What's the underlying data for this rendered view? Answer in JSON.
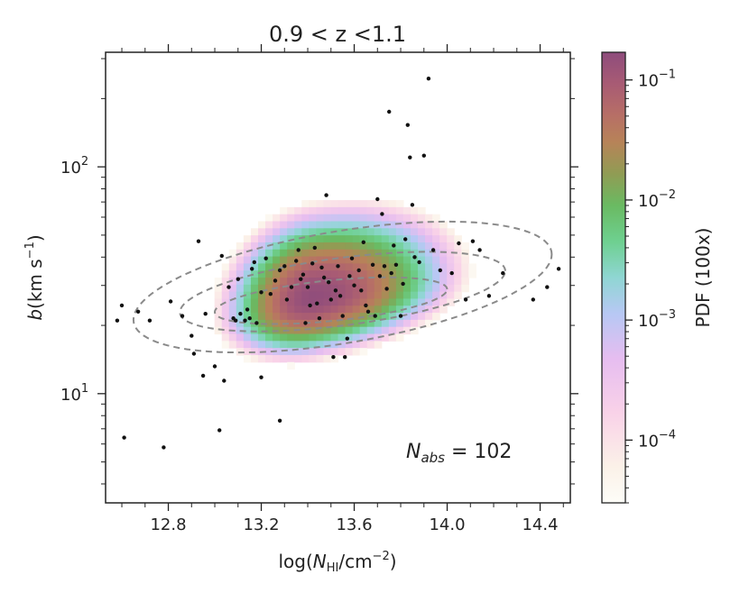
{
  "chart_data": {
    "type": "scatter",
    "title": "0.9 < z <1.1",
    "xlabel": "log(N_HI/cm^-2)",
    "ylabel": "b(km s^-1)",
    "xlim": [
      12.53,
      14.53
    ],
    "ylim": [
      3.3,
      320
    ],
    "yscale": "log",
    "xticks": [
      12.8,
      13.2,
      13.6,
      14.0,
      14.4
    ],
    "xtick_labels": [
      "12.8",
      "13.2",
      "13.6",
      "14.0",
      "14.4"
    ],
    "yticks": [
      10,
      100
    ],
    "ytick_labels": [
      "10^1",
      "10^2"
    ],
    "annotation": "N_abs = 102",
    "colorbar": {
      "label": "PDF (100x)",
      "scale": "log",
      "range": [
        3e-05,
        0.17
      ],
      "ticks": [
        0.0001,
        0.001,
        0.01,
        0.1
      ],
      "tick_labels": [
        "10^-4",
        "10^-3",
        "10^-2",
        "10^-1"
      ]
    },
    "density_model": {
      "note": "smooth log-normal PDF background with dashed contour levels",
      "center_x": 13.42,
      "center_log10_b": 1.42,
      "contours": [
        {
          "name": "outer",
          "cx": 13.55,
          "cy": 1.47,
          "rx": 0.9,
          "ry": 0.25,
          "tilt": 0.16
        },
        {
          "name": "mid",
          "cx": 13.55,
          "cy": 1.45,
          "rx": 0.7,
          "ry": 0.15,
          "tilt": 0.13
        },
        {
          "name": "inner",
          "cx": 13.5,
          "cy": 1.41,
          "rx": 0.5,
          "ry": 0.09,
          "tilt": 0.1
        }
      ]
    },
    "points": [
      [
        12.58,
        21.0
      ],
      [
        12.6,
        24.5
      ],
      [
        12.61,
        6.4
      ],
      [
        12.67,
        23.0
      ],
      [
        12.72,
        21.0
      ],
      [
        12.78,
        5.8
      ],
      [
        12.81,
        25.5
      ],
      [
        12.86,
        22.0
      ],
      [
        12.9,
        18.0
      ],
      [
        12.91,
        15.0
      ],
      [
        12.93,
        47.0
      ],
      [
        12.95,
        12.0
      ],
      [
        12.96,
        22.5
      ],
      [
        13.0,
        13.2
      ],
      [
        13.02,
        6.9
      ],
      [
        13.03,
        40.5
      ],
      [
        13.04,
        11.4
      ],
      [
        13.06,
        29.5
      ],
      [
        13.08,
        21.5
      ],
      [
        13.09,
        21.0
      ],
      [
        13.1,
        32.0
      ],
      [
        13.11,
        22.5
      ],
      [
        13.13,
        21.0
      ],
      [
        13.14,
        23.5
      ],
      [
        13.15,
        21.5
      ],
      [
        13.16,
        35.5
      ],
      [
        13.17,
        38.0
      ],
      [
        13.18,
        20.5
      ],
      [
        13.2,
        11.8
      ],
      [
        13.2,
        28.0
      ],
      [
        13.22,
        39.5
      ],
      [
        13.24,
        27.5
      ],
      [
        13.26,
        31.5
      ],
      [
        13.28,
        7.6
      ],
      [
        13.28,
        35.0
      ],
      [
        13.3,
        36.5
      ],
      [
        13.31,
        26.0
      ],
      [
        13.33,
        29.5
      ],
      [
        13.35,
        38.5
      ],
      [
        13.36,
        43.0
      ],
      [
        13.37,
        32.0
      ],
      [
        13.38,
        33.5
      ],
      [
        13.39,
        20.5
      ],
      [
        13.4,
        29.5
      ],
      [
        13.41,
        24.5
      ],
      [
        13.42,
        37.5
      ],
      [
        13.43,
        44.0
      ],
      [
        13.44,
        25.0
      ],
      [
        13.45,
        21.5
      ],
      [
        13.46,
        36.0
      ],
      [
        13.47,
        32.5
      ],
      [
        13.48,
        75.0
      ],
      [
        13.49,
        31.0
      ],
      [
        13.5,
        26.0
      ],
      [
        13.51,
        14.5
      ],
      [
        13.52,
        28.5
      ],
      [
        13.53,
        36.5
      ],
      [
        13.54,
        27.0
      ],
      [
        13.55,
        22.0
      ],
      [
        13.56,
        14.5
      ],
      [
        13.57,
        17.5
      ],
      [
        13.58,
        33.0
      ],
      [
        13.59,
        39.5
      ],
      [
        13.6,
        30.0
      ],
      [
        13.62,
        35.0
      ],
      [
        13.63,
        28.5
      ],
      [
        13.64,
        46.5
      ],
      [
        13.65,
        24.5
      ],
      [
        13.66,
        23.0
      ],
      [
        13.68,
        37.0
      ],
      [
        13.69,
        22.0
      ],
      [
        13.7,
        72.0
      ],
      [
        13.71,
        33.0
      ],
      [
        13.72,
        62.0
      ],
      [
        13.73,
        36.5
      ],
      [
        13.74,
        29.0
      ],
      [
        13.75,
        175.0
      ],
      [
        13.76,
        34.0
      ],
      [
        13.77,
        45.0
      ],
      [
        13.78,
        37.0
      ],
      [
        13.8,
        22.0
      ],
      [
        13.81,
        30.5
      ],
      [
        13.82,
        48.0
      ],
      [
        13.83,
        153.0
      ],
      [
        13.84,
        110.0
      ],
      [
        13.85,
        68.0
      ],
      [
        13.86,
        40.0
      ],
      [
        13.88,
        38.0
      ],
      [
        13.9,
        112.0
      ],
      [
        13.92,
        245.0
      ],
      [
        13.94,
        43.0
      ],
      [
        13.97,
        35.0
      ],
      [
        14.02,
        34.0
      ],
      [
        14.05,
        46.0
      ],
      [
        14.08,
        26.0
      ],
      [
        14.11,
        47.0
      ],
      [
        14.14,
        43.0
      ],
      [
        14.18,
        27.0
      ],
      [
        14.24,
        34.0
      ],
      [
        14.37,
        26.0
      ],
      [
        14.43,
        29.5
      ],
      [
        14.48,
        35.5
      ]
    ]
  }
}
